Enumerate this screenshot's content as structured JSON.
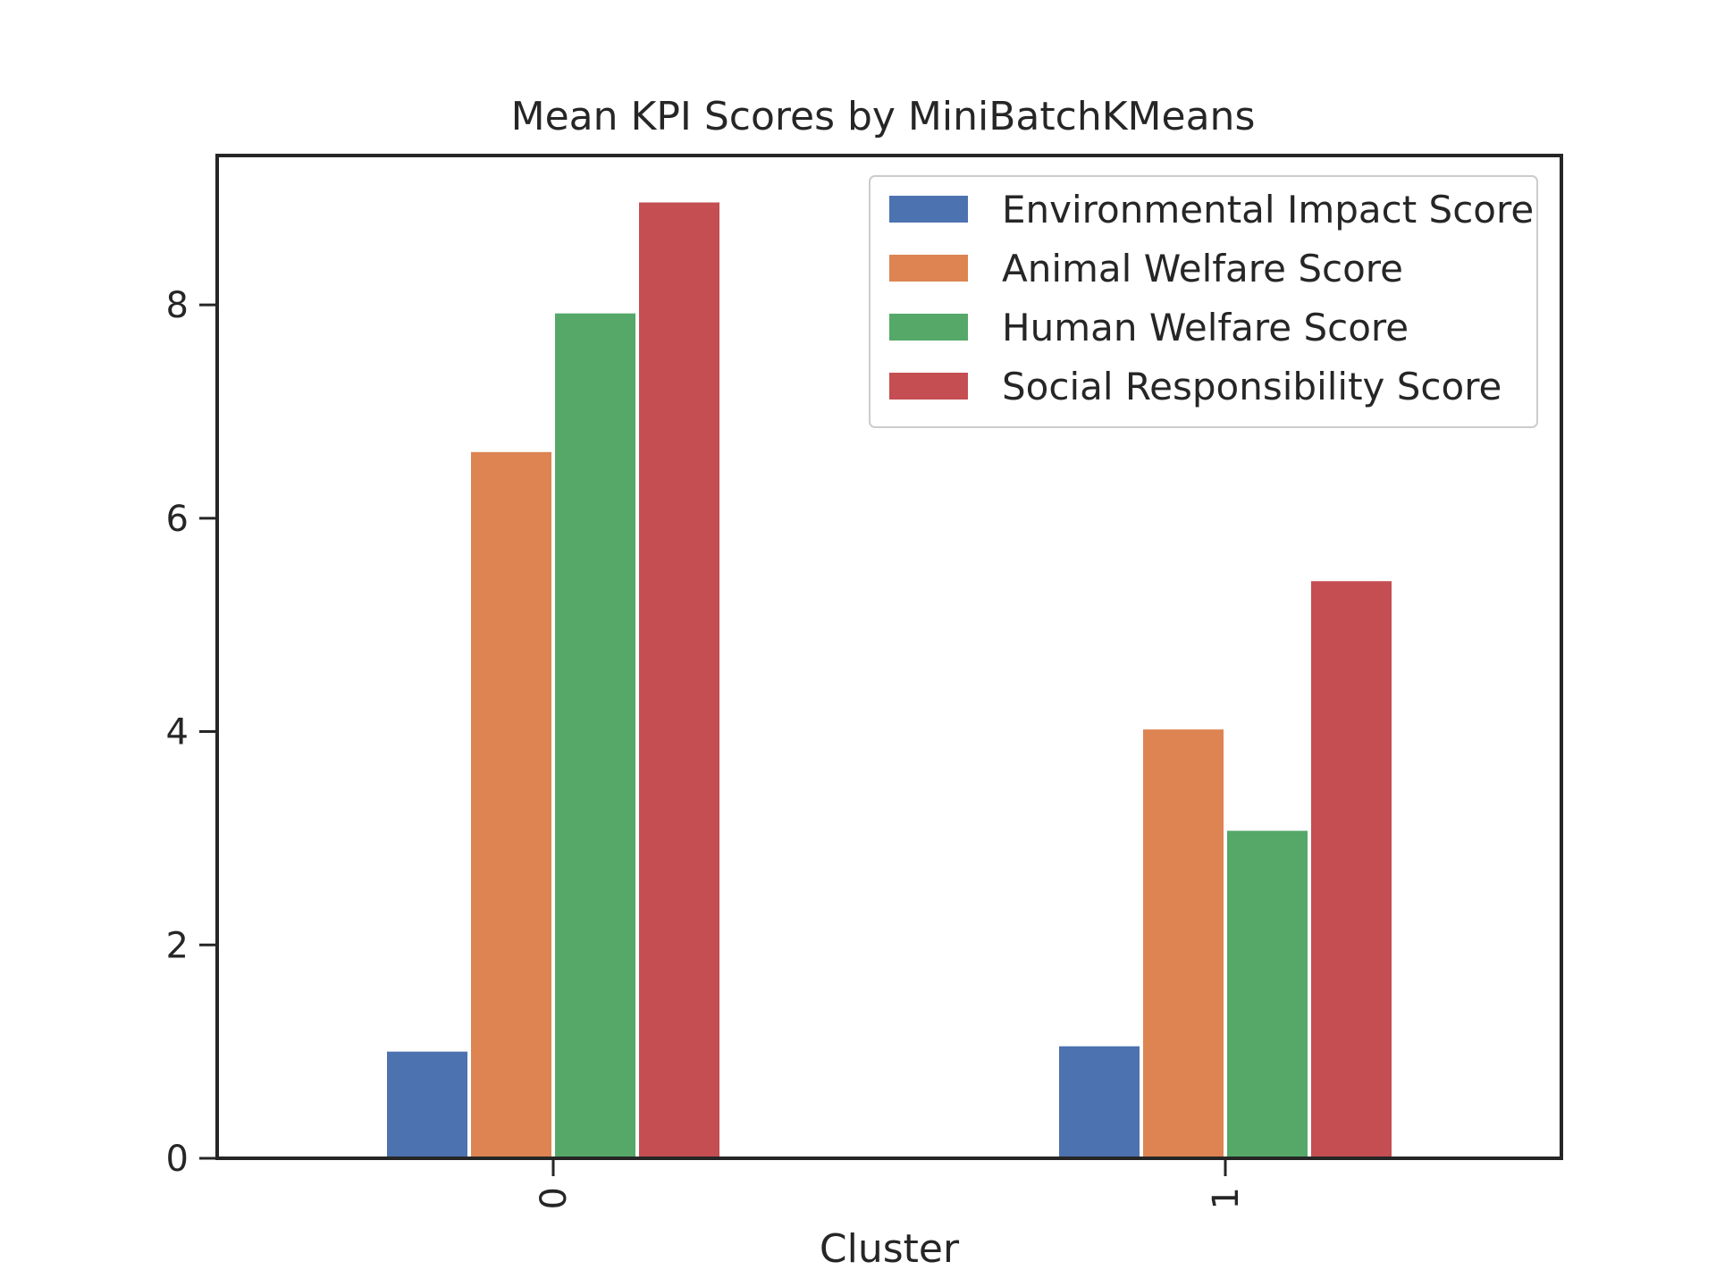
{
  "chart_data": {
    "type": "bar",
    "title": "Mean KPI Scores by MiniBatchKMeans",
    "xlabel": "Cluster",
    "ylabel": "",
    "categories": [
      "0",
      "1"
    ],
    "ylim": [
      0,
      9.4
    ],
    "yticks": [
      0,
      2,
      4,
      6,
      8
    ],
    "grid": false,
    "legend_position": "top-right",
    "series": [
      {
        "name": "Environmental Impact Score",
        "color": "#4c72b0",
        "values": [
          1.0,
          1.05
        ]
      },
      {
        "name": "Animal Welfare Score",
        "color": "#dd8452",
        "values": [
          6.62,
          4.02
        ]
      },
      {
        "name": "Human Welfare Score",
        "color": "#55a868",
        "values": [
          7.92,
          3.07
        ]
      },
      {
        "name": "Social Responsibility Score",
        "color": "#c44e52",
        "values": [
          8.96,
          5.41
        ]
      }
    ]
  }
}
